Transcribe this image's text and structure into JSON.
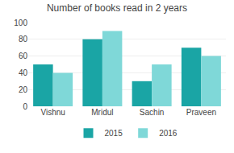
{
  "chart_data": {
    "type": "bar",
    "title": "Number of books read in 2 years",
    "categories": [
      "Vishnu",
      "Mridul",
      "Sachin",
      "Praveen"
    ],
    "series": [
      {
        "name": "2015",
        "color": "#1aa5a5",
        "values": [
          50,
          80,
          30,
          70
        ]
      },
      {
        "name": "2016",
        "color": "#7fd8d8",
        "values": [
          40,
          90,
          50,
          60
        ]
      }
    ],
    "ylim": [
      0,
      100
    ],
    "yticks": [
      0,
      20,
      40,
      60,
      80,
      100
    ],
    "grid": true,
    "legend": "bottom"
  }
}
